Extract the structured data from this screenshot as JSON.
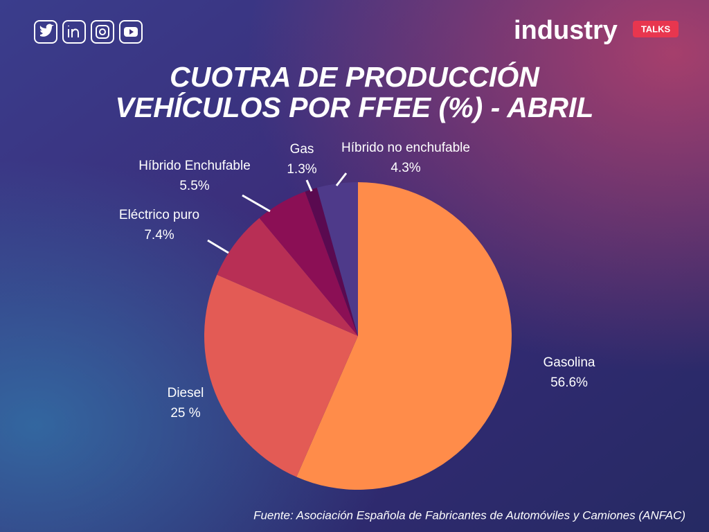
{
  "brand": {
    "name": "industry",
    "tag": "TALKS"
  },
  "chart_data": {
    "type": "pie",
    "title": [
      "CUOTRA DE PRODUCCIÓN",
      "VEHÍCULOS POR FFEE (%) - ABRIL"
    ],
    "categories": [
      "Gasolina",
      "Diesel",
      "Eléctrico puro",
      "Híbrido Enchufable",
      "Gas",
      "Híbrido no enchufable"
    ],
    "values": [
      56.6,
      25,
      7.4,
      5.5,
      1.3,
      4.3
    ],
    "value_labels": [
      "56.6%",
      "25 %",
      "7.4%",
      "5.5%",
      "1.3%",
      "4.3%"
    ],
    "colors": [
      "#ff8c4a",
      "#e35b55",
      "#b82f55",
      "#8b0f55",
      "#5a0a50",
      "#4e3a8a"
    ],
    "source": "Fuente: Asociación Española de Fabricantes de Automóviles y Camiones (ANFAC)"
  }
}
